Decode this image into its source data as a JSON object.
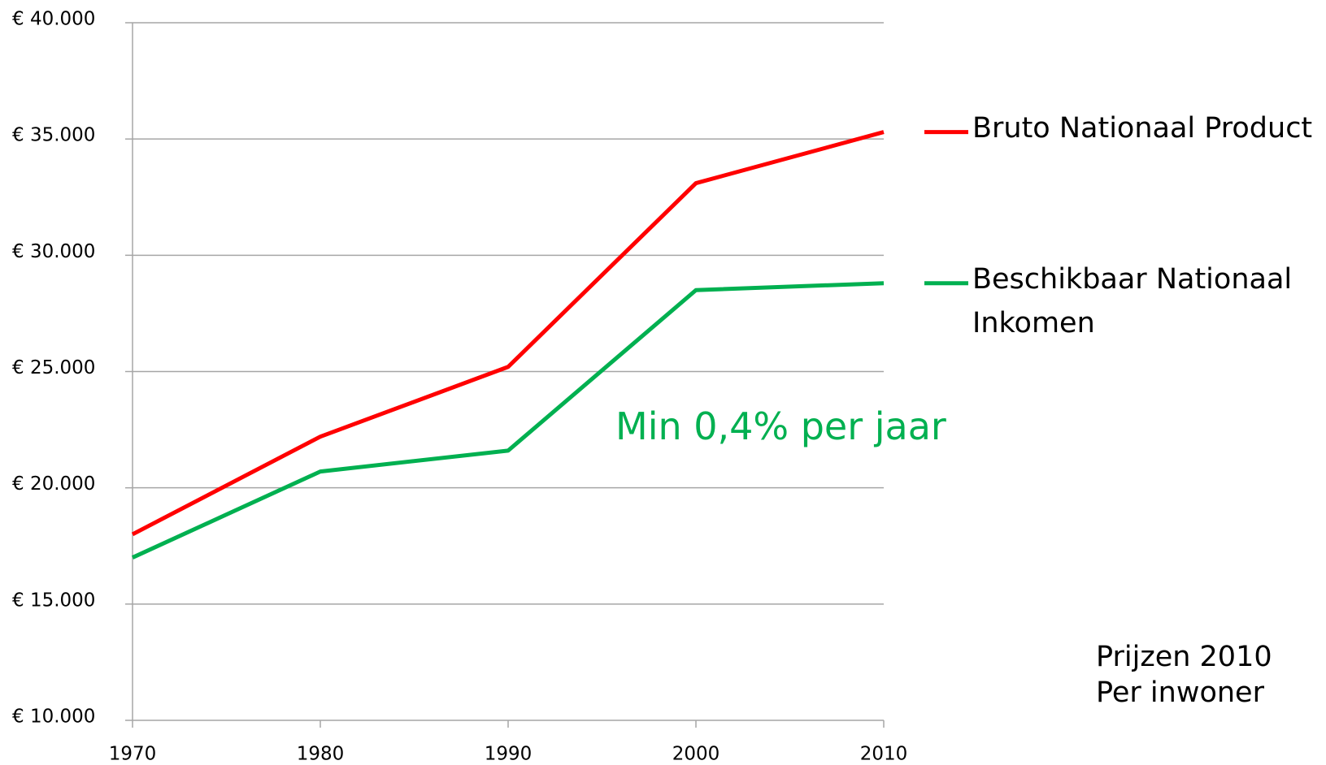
{
  "chart_data": {
    "type": "line",
    "x": [
      1970,
      1980,
      1990,
      2000,
      2010
    ],
    "series": [
      {
        "name": "Bruto Nationaal Product",
        "color": "#ff0000",
        "values": [
          18000,
          22200,
          25200,
          33100,
          35300
        ]
      },
      {
        "name": "Beschikbaar Nationaal Inkomen",
        "color": "#00b050",
        "values": [
          17000,
          20700,
          21600,
          28500,
          28800
        ]
      }
    ],
    "xlim": [
      1970,
      2010
    ],
    "xticks": [
      1970,
      1980,
      1990,
      2000,
      2010
    ],
    "ylim": [
      10000,
      40000
    ],
    "yticks": [
      {
        "value": 10000,
        "label": "€ 10.000"
      },
      {
        "value": 15000,
        "label": "€ 15.000"
      },
      {
        "value": 20000,
        "label": "€ 20.000"
      },
      {
        "value": 25000,
        "label": "€ 25.000"
      },
      {
        "value": 30000,
        "label": "€ 30.000"
      },
      {
        "value": 35000,
        "label": "€ 35.000"
      },
      {
        "value": 40000,
        "label": "€ 40.000"
      }
    ],
    "grid": true,
    "annotation": "Min 0,4% per jaar",
    "notes": [
      "Prijzen 2010",
      "Per inwoner"
    ]
  }
}
